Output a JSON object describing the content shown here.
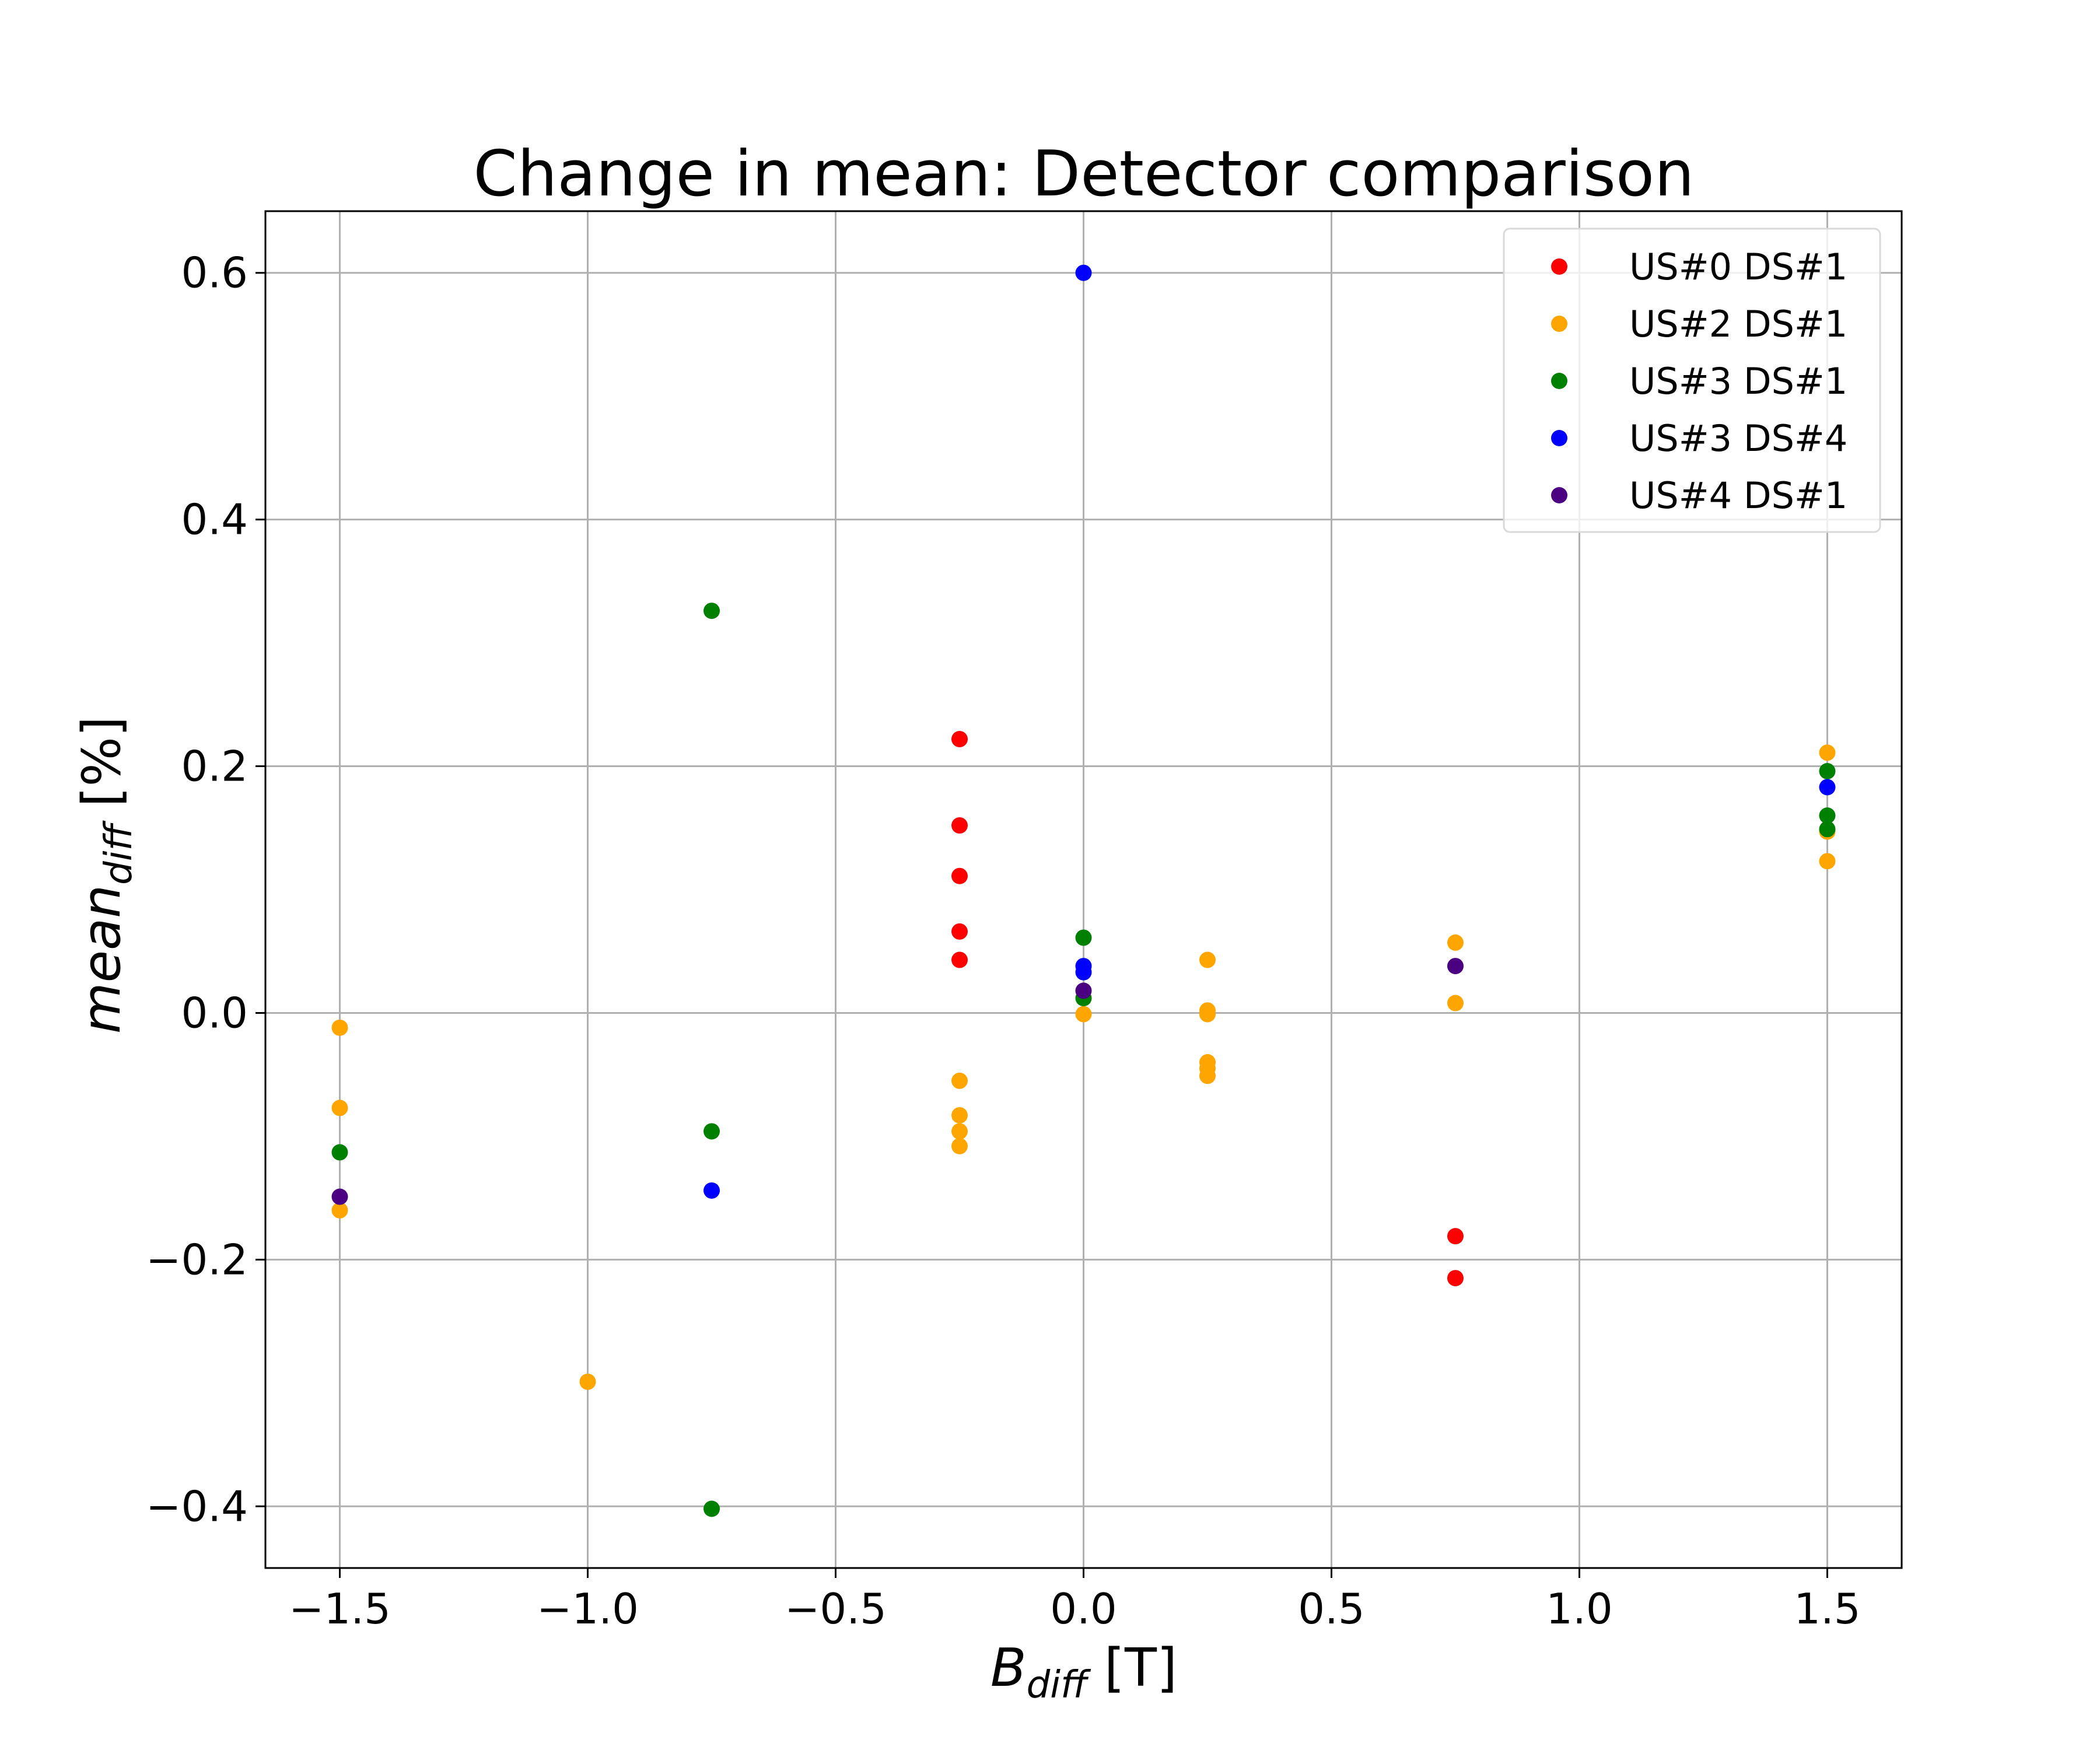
{
  "chart_data": {
    "type": "scatter",
    "title": "Change in mean: Detector comparison",
    "xlabel": {
      "main": "B",
      "sub": "diff",
      "unit": " [T]"
    },
    "ylabel": {
      "main": "mean",
      "sub": "diff",
      "unit": " [%]"
    },
    "xlim": [
      -1.65,
      1.65
    ],
    "ylim": [
      -0.45,
      0.65
    ],
    "xticks": [
      -1.5,
      -1.0,
      -0.5,
      0.0,
      0.5,
      1.0,
      1.5
    ],
    "xtick_labels": [
      "−1.5",
      "−1.0",
      "−0.5",
      "0.0",
      "0.5",
      "1.0",
      "1.5"
    ],
    "yticks": [
      -0.4,
      -0.2,
      0.0,
      0.2,
      0.4,
      0.6
    ],
    "ytick_labels": [
      "−0.4",
      "−0.2",
      "0.0",
      "0.2",
      "0.4",
      "0.6"
    ],
    "grid": true,
    "legend_position": "top-right",
    "series": [
      {
        "name": "US#0 DS#1",
        "color": "#ff0000",
        "points": [
          [
            -0.25,
            0.222
          ],
          [
            -0.25,
            0.152
          ],
          [
            -0.25,
            0.111
          ],
          [
            -0.25,
            0.066
          ],
          [
            -0.25,
            0.043
          ],
          [
            0.75,
            -0.181
          ],
          [
            0.75,
            -0.215
          ]
        ]
      },
      {
        "name": "US#2 DS#1",
        "color": "#ffa500",
        "points": [
          [
            -1.5,
            -0.012
          ],
          [
            -1.5,
            -0.077
          ],
          [
            -1.5,
            -0.16
          ],
          [
            -1.0,
            -0.299
          ],
          [
            -0.25,
            -0.055
          ],
          [
            -0.25,
            -0.083
          ],
          [
            -0.25,
            -0.096
          ],
          [
            -0.25,
            -0.108
          ],
          [
            0.0,
            -0.001
          ],
          [
            0.25,
            0.043
          ],
          [
            0.25,
            0.002
          ],
          [
            0.25,
            -0.001
          ],
          [
            0.25,
            -0.04
          ],
          [
            0.25,
            -0.045
          ],
          [
            0.25,
            -0.051
          ],
          [
            0.75,
            0.057
          ],
          [
            0.75,
            0.008
          ],
          [
            1.5,
            0.211
          ],
          [
            1.5,
            0.147
          ],
          [
            1.5,
            0.123
          ]
        ]
      },
      {
        "name": "US#3 DS#1",
        "color": "#008000",
        "points": [
          [
            -1.5,
            -0.113
          ],
          [
            -0.75,
            0.326
          ],
          [
            -0.75,
            -0.096
          ],
          [
            -0.75,
            -0.402
          ],
          [
            0.0,
            0.061
          ],
          [
            0.0,
            0.012
          ],
          [
            1.5,
            0.196
          ],
          [
            1.5,
            0.16
          ],
          [
            1.5,
            0.149
          ]
        ]
      },
      {
        "name": "US#3 DS#4",
        "color": "#0000ff",
        "points": [
          [
            -0.75,
            -0.144
          ],
          [
            0.0,
            0.6
          ],
          [
            0.0,
            0.038
          ],
          [
            0.0,
            0.033
          ],
          [
            1.5,
            0.183
          ]
        ]
      },
      {
        "name": "US#4 DS#1",
        "color": "#4b0082",
        "points": [
          [
            -1.5,
            -0.149
          ],
          [
            0.0,
            0.018
          ],
          [
            0.75,
            0.038
          ]
        ]
      }
    ]
  }
}
